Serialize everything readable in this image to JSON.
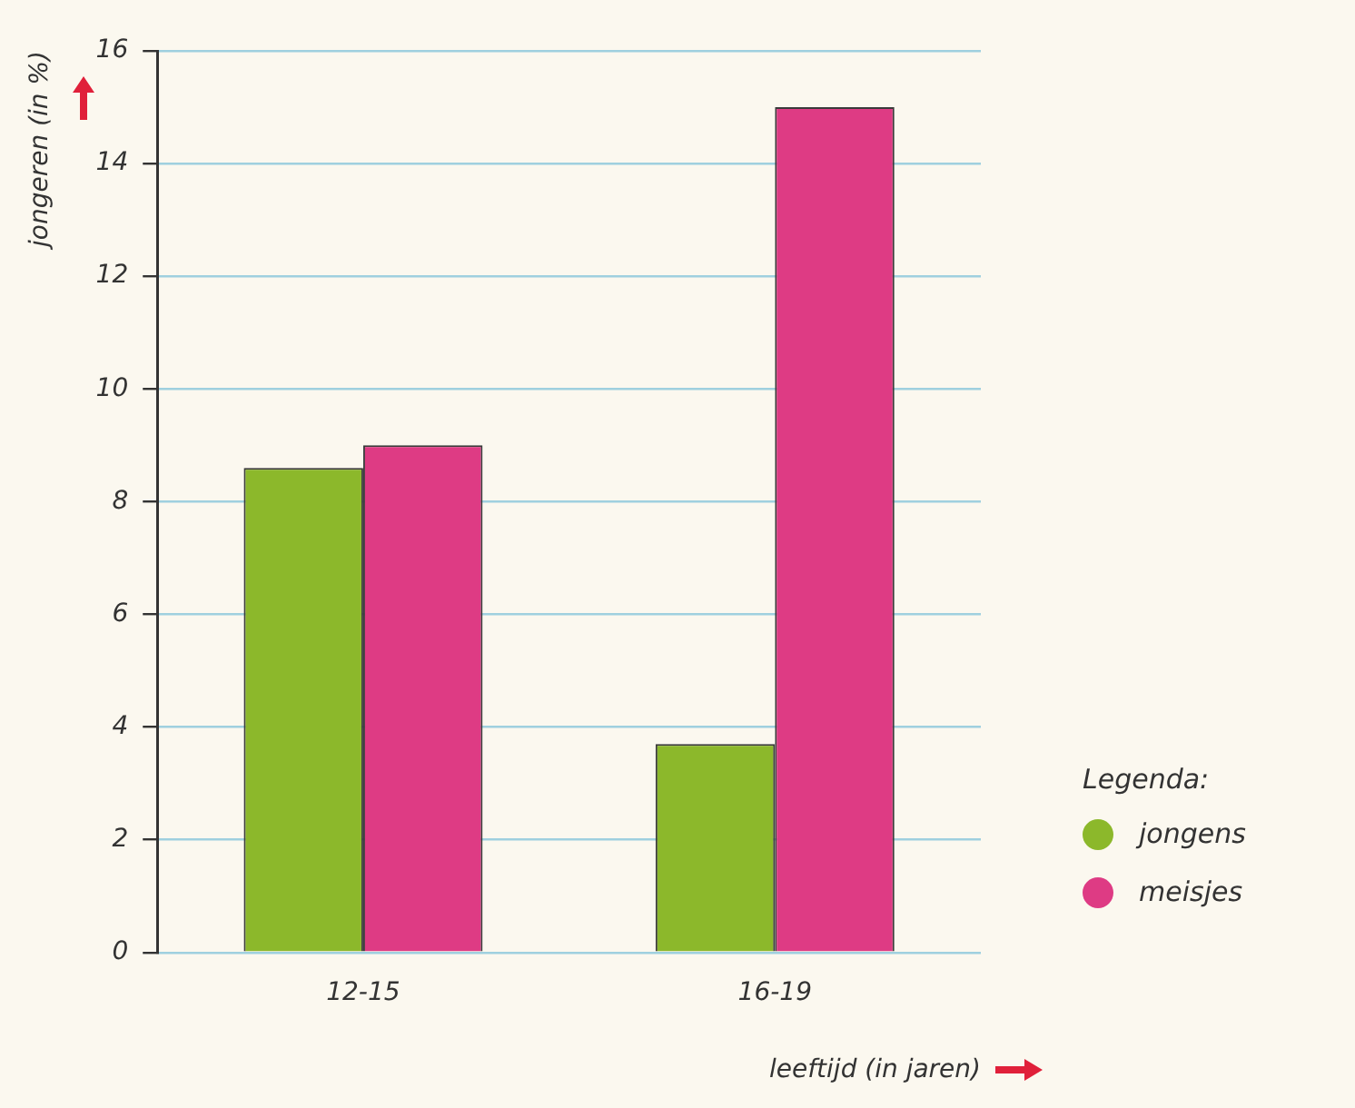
{
  "chart_data": {
    "type": "bar",
    "ylabel": "jongeren (in %)",
    "xlabel": "leeftijd (in jaren)",
    "legend_title": "Legenda:",
    "categories": [
      "12-15",
      "16-19"
    ],
    "series": [
      {
        "name": "jongens",
        "color": "#8cb82b",
        "values": [
          8.6,
          3.7
        ]
      },
      {
        "name": "meisjes",
        "color": "#de3b84",
        "values": [
          9.0,
          15.0
        ]
      }
    ],
    "ylim": [
      0,
      16
    ],
    "yticks": [
      0,
      2,
      4,
      6,
      8,
      10,
      12,
      14,
      16
    ],
    "grid": "y",
    "legend": "right"
  }
}
